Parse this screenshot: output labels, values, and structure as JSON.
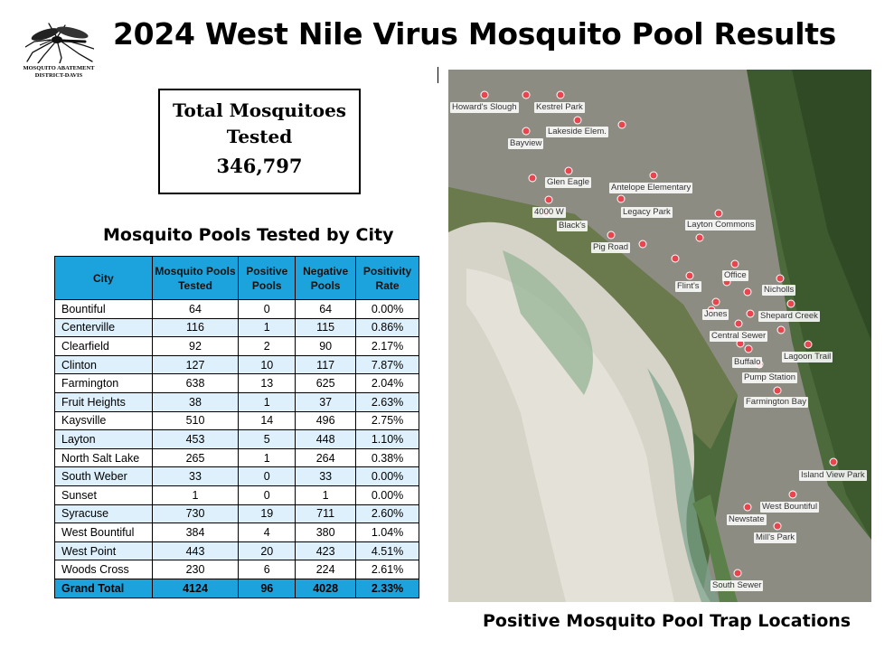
{
  "title": "2024 West Nile Virus Mosquito Pool Results",
  "logo": {
    "icon": "mosquito-icon",
    "line1": "MOSQUITO ABATEMENT",
    "line2": "DISTRICT-DAVIS"
  },
  "total": {
    "label_line1": "Total Mosquitoes",
    "label_line2": "Tested",
    "value": "346,797"
  },
  "table": {
    "title": "Mosquito Pools Tested by City",
    "headers": [
      "City",
      "Mosquito Pools Tested",
      "Positive Pools",
      "Negative Pools",
      "Positivity Rate"
    ],
    "rows": [
      [
        "Bountiful",
        "64",
        "0",
        "64",
        "0.00%"
      ],
      [
        "Centerville",
        "116",
        "1",
        "115",
        "0.86%"
      ],
      [
        "Clearfield",
        "92",
        "2",
        "90",
        "2.17%"
      ],
      [
        "Clinton",
        "127",
        "10",
        "117",
        "7.87%"
      ],
      [
        "Farmington",
        "638",
        "13",
        "625",
        "2.04%"
      ],
      [
        "Fruit Heights",
        "38",
        "1",
        "37",
        "2.63%"
      ],
      [
        "Kaysville",
        "510",
        "14",
        "496",
        "2.75%"
      ],
      [
        "Layton",
        "453",
        "5",
        "448",
        "1.10%"
      ],
      [
        "North Salt Lake",
        "265",
        "1",
        "264",
        "0.38%"
      ],
      [
        "South Weber",
        "33",
        "0",
        "33",
        "0.00%"
      ],
      [
        "Sunset",
        "1",
        "0",
        "1",
        "0.00%"
      ],
      [
        "Syracuse",
        "730",
        "19",
        "711",
        "2.60%"
      ],
      [
        "West Bountiful",
        "384",
        "4",
        "380",
        "1.04%"
      ],
      [
        "West Point",
        "443",
        "20",
        "423",
        "4.51%"
      ],
      [
        "Woods Cross",
        "230",
        "6",
        "224",
        "2.61%"
      ]
    ],
    "total_row": [
      "Grand Total",
      "4124",
      "96",
      "4028",
      "2.33%"
    ]
  },
  "map": {
    "caption": "Positive Mosquito Pool Trap Locations",
    "labels": [
      "Howard's Slough",
      "Kestrel Park",
      "Lakeside Elem.",
      "Bayview",
      "Glen Eagle",
      "Antelope Elementary",
      "4000 W",
      "Legacy Park",
      "Black's",
      "Layton Commons",
      "Pig Road",
      "Office",
      "Flint's",
      "Nicholls",
      "Jones",
      "Shepard Creek",
      "Central Sewer",
      "Lagoon Trail",
      "Buffalo",
      "Pump Station",
      "Farmington Bay",
      "Island View Park",
      "West Bountiful",
      "Newstate",
      "Mill's Park",
      "South Sewer"
    ],
    "colors": {
      "pin": "#e8454f",
      "water": "#d6d3c9",
      "land": "#4d6a3c"
    }
  },
  "colors": {
    "header_blue": "#1ca3de",
    "row_alt": "#ddf0fb"
  }
}
